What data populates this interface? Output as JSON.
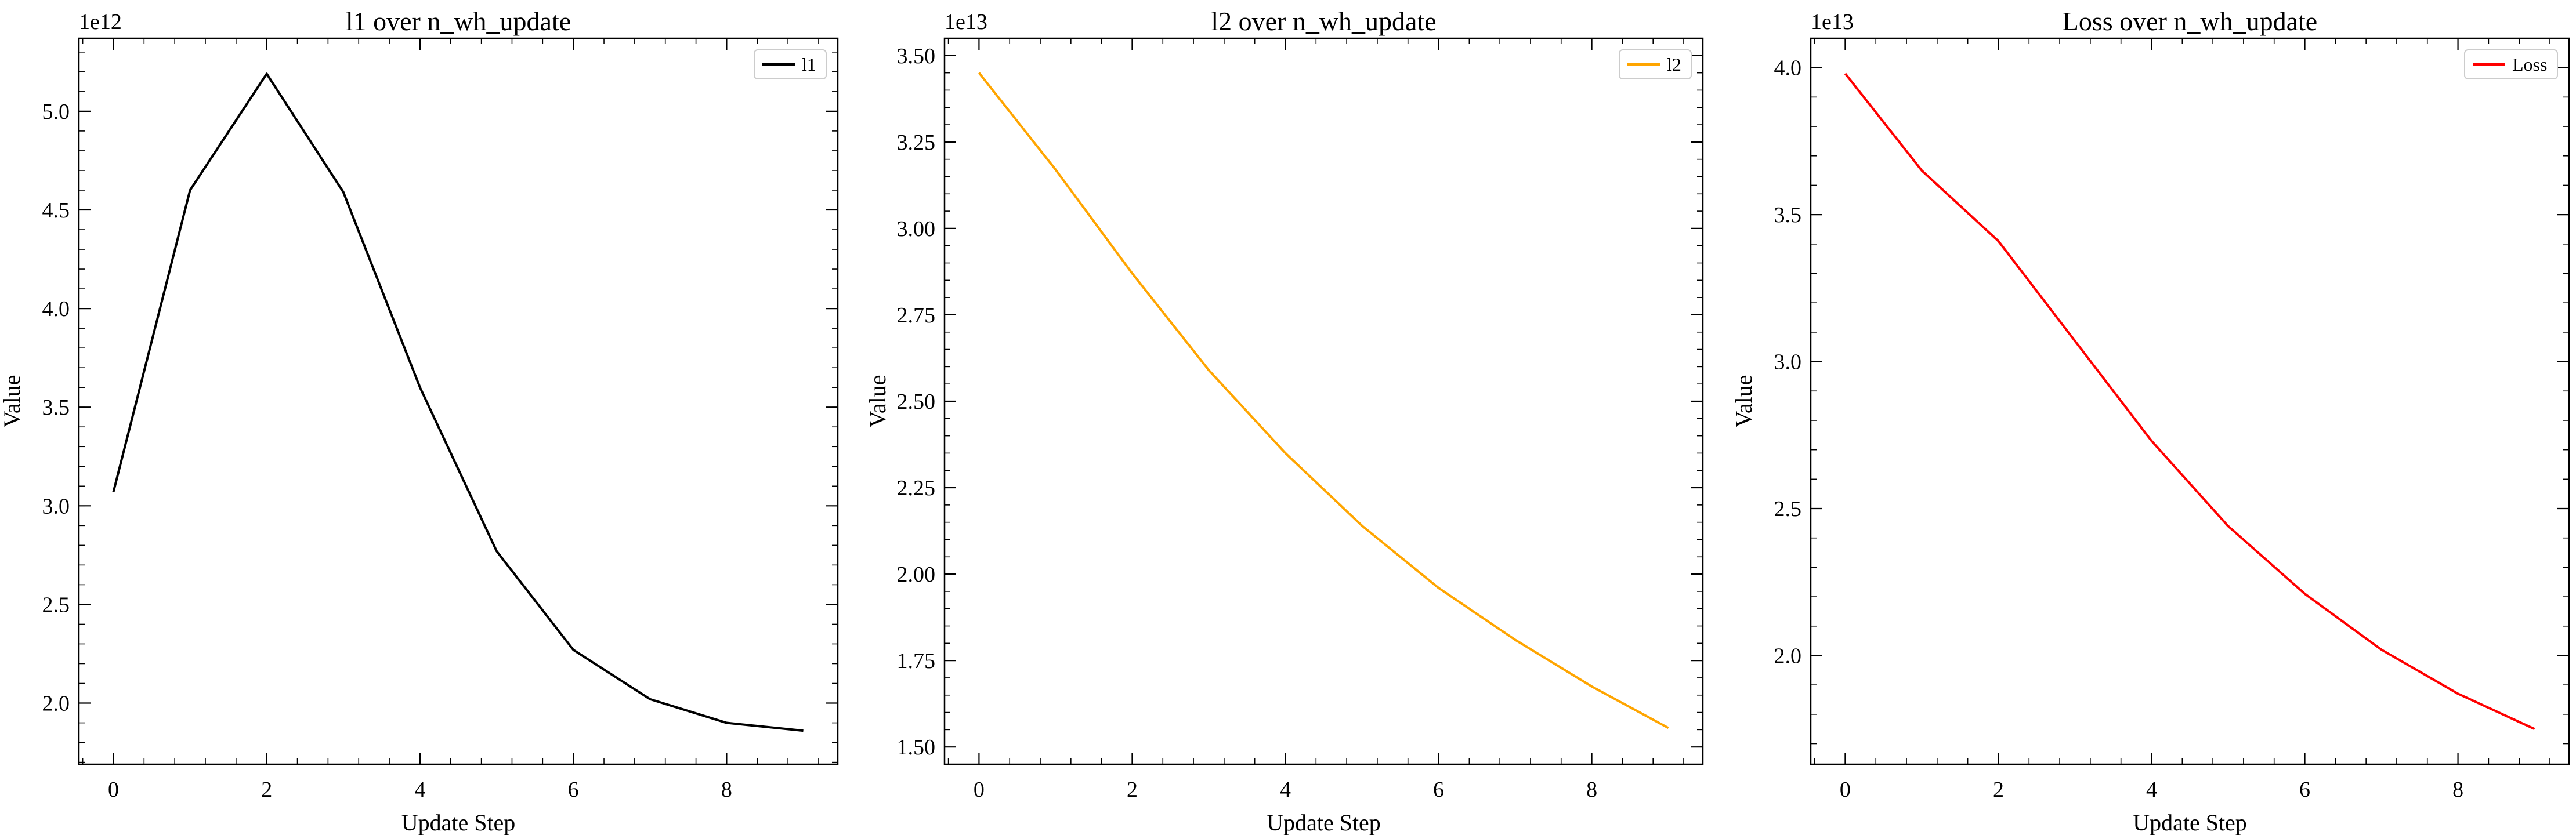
{
  "chart_data": [
    {
      "type": "line",
      "title": "l1 over n_wh_update",
      "xlabel": "Update Step",
      "ylabel": "Value",
      "offset_label": "1e12",
      "scale": 1000000000000.0,
      "xlim": [
        -0.45,
        9.45
      ],
      "ylim": [
        1.69,
        5.37
      ],
      "xticks": [
        0,
        2,
        4,
        6,
        8
      ],
      "xtick_labels": [
        "0",
        "2",
        "4",
        "6",
        "8"
      ],
      "yticks": [
        2.0,
        2.5,
        3.0,
        3.5,
        4.0,
        4.5,
        5.0
      ],
      "ytick_labels": [
        "2.0",
        "2.5",
        "3.0",
        "3.5",
        "4.0",
        "4.5",
        "5.0"
      ],
      "legend_position": "top-right",
      "grid": false,
      "series": [
        {
          "name": "l1",
          "color": "#000000",
          "x": [
            0,
            1,
            2,
            3,
            4,
            5,
            6,
            7,
            8,
            9
          ],
          "values": [
            3.07,
            4.6,
            5.19,
            4.59,
            3.6,
            2.77,
            2.27,
            2.02,
            1.9,
            1.86
          ]
        }
      ]
    },
    {
      "type": "line",
      "title": "l2 over n_wh_update",
      "xlabel": "Update Step",
      "ylabel": "Value",
      "offset_label": "1e13",
      "scale": 10000000000000.0,
      "xlim": [
        -0.45,
        9.45
      ],
      "ylim": [
        1.45,
        3.55
      ],
      "xticks": [
        0,
        2,
        4,
        6,
        8
      ],
      "xtick_labels": [
        "0",
        "2",
        "4",
        "6",
        "8"
      ],
      "yticks": [
        1.5,
        1.75,
        2.0,
        2.25,
        2.5,
        2.75,
        3.0,
        3.25,
        3.5
      ],
      "ytick_labels": [
        "1.50",
        "1.75",
        "2.00",
        "2.25",
        "2.50",
        "2.75",
        "3.00",
        "3.25",
        "3.50"
      ],
      "legend_position": "top-right",
      "grid": false,
      "series": [
        {
          "name": "l2",
          "color": "#FFA500",
          "x": [
            0,
            1,
            2,
            3,
            4,
            5,
            6,
            7,
            8,
            9
          ],
          "values": [
            3.45,
            3.17,
            2.87,
            2.59,
            2.35,
            2.14,
            1.96,
            1.81,
            1.675,
            1.555
          ]
        }
      ]
    },
    {
      "type": "line",
      "title": "Loss over n_wh_update",
      "xlabel": "Update Step",
      "ylabel": "Value",
      "offset_label": "1e13",
      "scale": 10000000000000.0,
      "xlim": [
        -0.45,
        9.45
      ],
      "ylim": [
        1.63,
        4.1
      ],
      "xticks": [
        0,
        2,
        4,
        6,
        8
      ],
      "xtick_labels": [
        "0",
        "2",
        "4",
        "6",
        "8"
      ],
      "yticks": [
        2.0,
        2.5,
        3.0,
        3.5,
        4.0
      ],
      "ytick_labels": [
        "2.0",
        "2.5",
        "3.0",
        "3.5",
        "4.0"
      ],
      "legend_position": "top-right",
      "grid": false,
      "series": [
        {
          "name": "Loss",
          "color": "#FF0000",
          "x": [
            0,
            1,
            2,
            3,
            4,
            5,
            6,
            7,
            8,
            9
          ],
          "values": [
            3.98,
            3.65,
            3.41,
            3.07,
            2.73,
            2.44,
            2.21,
            2.02,
            1.87,
            1.75
          ]
        }
      ]
    }
  ]
}
